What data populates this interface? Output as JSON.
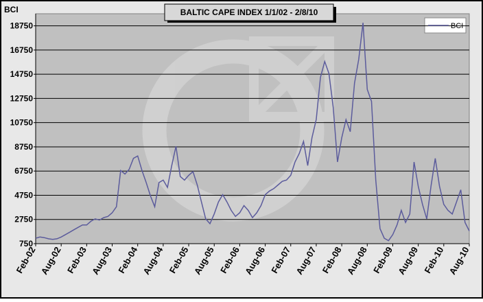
{
  "chart_data": {
    "type": "line",
    "title": "BALTIC CAPE INDEX 1/1/02 - 2/8/10",
    "y_label": "BCI",
    "categories": [
      "Feb-02",
      null,
      null,
      null,
      null,
      null,
      "Aug-02",
      null,
      null,
      null,
      null,
      null,
      "Feb-03",
      null,
      null,
      null,
      null,
      null,
      "Aug-03",
      null,
      null,
      null,
      null,
      null,
      "Feb-04",
      null,
      null,
      null,
      null,
      null,
      "Aug-04",
      null,
      null,
      null,
      null,
      null,
      "Feb-05",
      null,
      null,
      null,
      null,
      null,
      "Aug-05",
      null,
      null,
      null,
      null,
      null,
      "Feb-06",
      null,
      null,
      null,
      null,
      null,
      "Aug-06",
      null,
      null,
      null,
      null,
      null,
      "Feb-07",
      null,
      null,
      null,
      null,
      null,
      "Aug-07",
      null,
      null,
      null,
      null,
      null,
      "Feb-08",
      null,
      null,
      null,
      null,
      null,
      "Aug-08",
      null,
      null,
      null,
      null,
      null,
      "Feb-09",
      null,
      null,
      null,
      null,
      null,
      "Aug-09",
      null,
      null,
      null,
      null,
      null,
      "Feb-10",
      null,
      null,
      null,
      null,
      null,
      "Aug-10"
    ],
    "series": [
      {
        "name": "BCI",
        "color": "#5b5b9c",
        "values": [
          1200,
          1300,
          1250,
          1150,
          1100,
          1150,
          1300,
          1500,
          1700,
          1900,
          2100,
          2300,
          2300,
          2600,
          2800,
          2700,
          2900,
          3000,
          3300,
          3800,
          6800,
          6500,
          6900,
          7800,
          8000,
          6800,
          5800,
          4700,
          3800,
          5800,
          6000,
          5400,
          7200,
          8800,
          6300,
          6000,
          6400,
          6700,
          5600,
          4200,
          2800,
          2400,
          3200,
          4200,
          4800,
          4200,
          3500,
          3000,
          3300,
          3900,
          3500,
          2900,
          3300,
          3900,
          4800,
          5100,
          5300,
          5600,
          5900,
          6000,
          6400,
          7500,
          8200,
          9200,
          7200,
          9500,
          11000,
          14500,
          15800,
          14800,
          12000,
          7500,
          9500,
          11000,
          10000,
          14000,
          16000,
          19000,
          13500,
          12500,
          6000,
          2000,
          1200,
          1000,
          1500,
          2300,
          3500,
          2500,
          3200,
          7500,
          5500,
          4000,
          2800,
          5500,
          7800,
          5500,
          4000,
          3500,
          3200,
          4200,
          5200,
          2500,
          1800
        ]
      }
    ],
    "ylim": [
      750,
      19750
    ],
    "yticks": [
      750,
      2750,
      4750,
      6750,
      8750,
      10750,
      12750,
      14750,
      16750,
      18750
    ],
    "grid": true,
    "legend": "top-right",
    "plot_background": "#c0c0c0"
  }
}
